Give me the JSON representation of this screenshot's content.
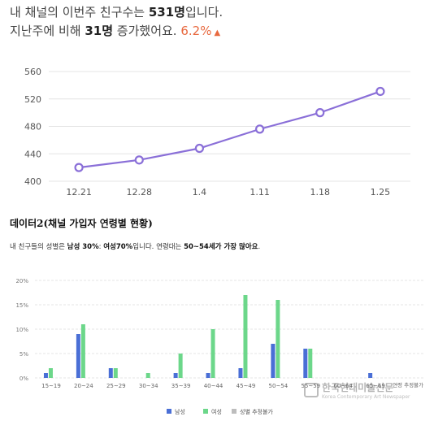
{
  "headline": {
    "l1_pre": "내 채널의 이번주 친구수는 ",
    "l1_value": "531명",
    "l1_post": "입니다.",
    "l2_pre": "지난주에 비해 ",
    "l2_value": "31명",
    "l2_post": " 증가했어요. ",
    "l2_pct": "6.2%",
    "trend_icon": "triangle-up-icon"
  },
  "section": {
    "title": "데이터2(채널 가입자 연령별 현황)",
    "sub_pre": "내 친구들의 성별은 ",
    "sub_male": "남성 30%",
    "sub_mid": ": ",
    "sub_female": "여성70%",
    "sub_post": "입니다. 연령대는 ",
    "sub_age": "50~54세가 가장 많아요",
    "sub_end": "."
  },
  "watermark": {
    "name": "한국현대미술신문",
    "en": "Korea Contemporary Art Newspaper"
  },
  "colors": {
    "line": "#8a6fd8",
    "male": "#4a6fd6",
    "female": "#6cd78a",
    "unknown": "#bdbdbd",
    "grid": "#e4e4e4"
  },
  "chart_data": [
    {
      "type": "line",
      "categories": [
        "12.21",
        "12.28",
        "1.4",
        "1.11",
        "1.18",
        "1.25"
      ],
      "values": [
        420,
        431,
        448,
        476,
        500,
        531
      ],
      "yticks": [
        400,
        440,
        480,
        520,
        560
      ],
      "ylim": [
        400,
        560
      ],
      "grid": true
    },
    {
      "type": "bar",
      "categories": [
        "15~19",
        "20~24",
        "25~29",
        "30~34",
        "35~39",
        "40~44",
        "45~49",
        "50~54",
        "55~59",
        "60~64",
        "65~69",
        "연령 추정불가"
      ],
      "yticks": [
        "0%",
        "5%",
        "10%",
        "15%",
        "20%"
      ],
      "ylim": [
        0,
        20
      ],
      "series": [
        {
          "name": "남성",
          "values": [
            1,
            9,
            2,
            0,
            1,
            1,
            2,
            7,
            6,
            0,
            1,
            0
          ]
        },
        {
          "name": "여성",
          "values": [
            2,
            11,
            2,
            1,
            5,
            10,
            17,
            16,
            6,
            0,
            0,
            0
          ]
        },
        {
          "name": "성별 추정불가",
          "values": [
            0,
            0,
            0,
            0,
            0,
            0,
            0,
            0,
            0,
            0,
            0,
            0
          ]
        }
      ],
      "legend": "bottom",
      "grid": true
    }
  ]
}
